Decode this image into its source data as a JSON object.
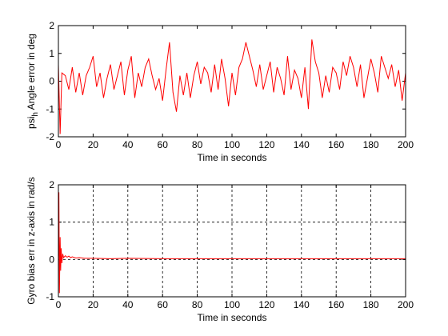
{
  "chart_data": [
    {
      "type": "line",
      "xlabel": "Time in seconds",
      "ylabel": [
        "psi",
        "h",
        " Angle error in deg"
      ],
      "grid": false,
      "xlim": [
        0,
        200
      ],
      "ylim": [
        -2,
        2
      ],
      "xticks": [
        0,
        20,
        40,
        60,
        80,
        100,
        120,
        140,
        160,
        180,
        200
      ],
      "yticks": [
        -2,
        -1,
        0,
        1,
        2
      ],
      "series": [
        {
          "name": "psi",
          "color": "#ff0000",
          "x": [
            0,
            1,
            2,
            4,
            6,
            8,
            10,
            12,
            14,
            16,
            18,
            20,
            22,
            24,
            26,
            28,
            30,
            32,
            34,
            36,
            38,
            40,
            42,
            44,
            46,
            48,
            50,
            52,
            54,
            56,
            58,
            60,
            62,
            64,
            66,
            68,
            70,
            72,
            74,
            76,
            78,
            80,
            82,
            84,
            86,
            88,
            90,
            92,
            94,
            96,
            98,
            100,
            102,
            104,
            106,
            108,
            110,
            112,
            114,
            116,
            118,
            120,
            122,
            124,
            126,
            128,
            130,
            132,
            134,
            136,
            138,
            140,
            142,
            144,
            146,
            148,
            150,
            152,
            154,
            156,
            158,
            160,
            162,
            164,
            166,
            168,
            170,
            172,
            174,
            176,
            178,
            180,
            182,
            184,
            186,
            188,
            190,
            192,
            194,
            196,
            198,
            200
          ],
          "values": [
            0.6,
            -1.9,
            0.3,
            0.2,
            -0.3,
            0.5,
            -0.4,
            0.3,
            -0.5,
            0.2,
            0.5,
            0.9,
            -0.2,
            0.3,
            -0.6,
            0.1,
            0.6,
            -0.3,
            0.2,
            0.7,
            -0.5,
            0.4,
            0.9,
            -0.6,
            0.3,
            -0.2,
            0.5,
            0.8,
            0.2,
            -0.3,
            0.1,
            -0.7,
            0.4,
            1.4,
            -0.4,
            -1.1,
            0.2,
            -0.5,
            0.3,
            -0.6,
            0.2,
            0.7,
            -0.1,
            0.5,
            0.3,
            -0.4,
            0.6,
            -0.3,
            0.8,
            0.1,
            -0.9,
            0.3,
            -0.5,
            0.5,
            0.8,
            1.4,
            0.9,
            0.4,
            -0.2,
            0.6,
            -0.3,
            0.2,
            0.7,
            -0.4,
            0.5,
            0.1,
            -0.5,
            0.9,
            -0.3,
            0.4,
            0.1,
            -0.6,
            0.5,
            -1.0,
            1.5,
            0.7,
            0.3,
            -0.6,
            0.2,
            -0.4,
            0.5,
            0.3,
            -0.3,
            0.7,
            0.2,
            0.9,
            0.5,
            -0.2,
            0.6,
            -0.6,
            0.1,
            0.8,
            0.3,
            -0.4,
            0.9,
            0.5,
            0.1,
            0.6,
            -0.2,
            0.4,
            -0.7,
            0.3
          ]
        }
      ]
    },
    {
      "type": "line",
      "xlabel": "Time in seconds",
      "ylabel": [
        "Gyro bias err in z-axis in rad/s"
      ],
      "grid": true,
      "xlim": [
        0,
        200
      ],
      "ylim": [
        -1,
        2
      ],
      "xticks": [
        0,
        20,
        40,
        60,
        80,
        100,
        120,
        140,
        160,
        180,
        200
      ],
      "yticks": [
        -1,
        0,
        1,
        2
      ],
      "series": [
        {
          "name": "bias",
          "color": "#ff0000",
          "x": [
            0,
            0.3,
            0.6,
            1,
            1.3,
            1.6,
            2,
            2.5,
            3,
            4,
            5,
            6,
            7,
            8,
            10,
            12,
            15,
            20,
            30,
            40,
            60,
            80,
            100,
            120,
            140,
            160,
            180,
            200
          ],
          "values": [
            0,
            1.8,
            -0.9,
            0.6,
            -0.3,
            0.3,
            -0.1,
            0.15,
            0.05,
            0.1,
            0.06,
            0.09,
            0.05,
            0.07,
            0.04,
            0.05,
            0.03,
            0.03,
            0.02,
            0.03,
            0.02,
            0.02,
            0.02,
            0.02,
            0.02,
            0.02,
            0.02,
            0.02
          ]
        }
      ]
    }
  ]
}
